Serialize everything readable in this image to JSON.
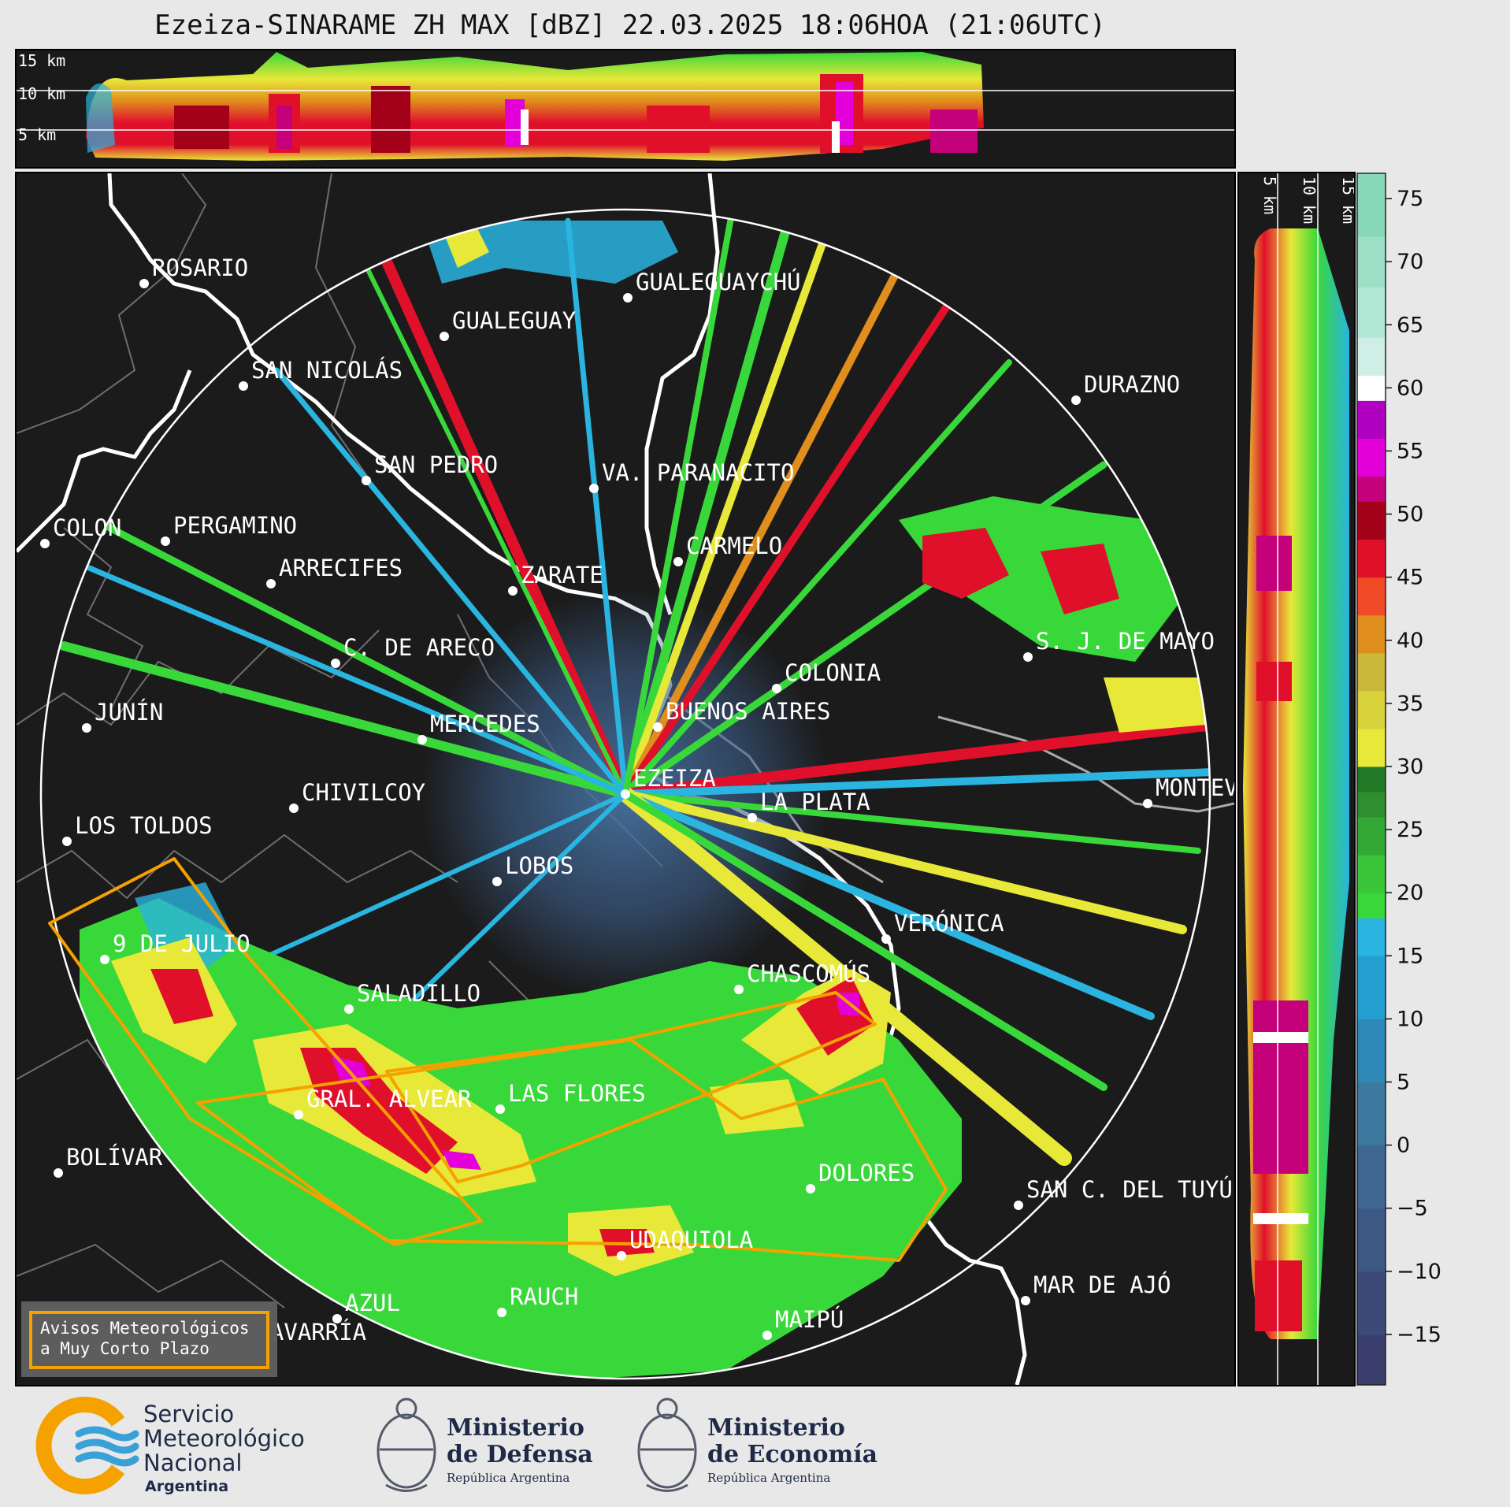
{
  "title": "Ezeiza-SINARAME ZH MAX [dBZ] 22.03.2025 18:06HOA (21:06UTC)",
  "top_panel": {
    "altitude_labels": [
      "15 km",
      "10 km",
      "5 km"
    ]
  },
  "side_panel": {
    "altitude_labels": [
      "5 km",
      "10 km",
      "15 km"
    ]
  },
  "colorbar": {
    "ticks": [
      "75",
      "70",
      "65",
      "60",
      "55",
      "50",
      "45",
      "40",
      "35",
      "30",
      "25",
      "20",
      "15",
      "10",
      "5",
      "0",
      "−5",
      "−10",
      "−15"
    ],
    "range": [
      -19,
      77
    ],
    "bands": [
      {
        "from": -19,
        "to": -15,
        "color": "#3a3f6d"
      },
      {
        "from": -15,
        "to": -10,
        "color": "#3d4a78"
      },
      {
        "from": -10,
        "to": -5,
        "color": "#3e5886"
      },
      {
        "from": -5,
        "to": 0,
        "color": "#3f6791"
      },
      {
        "from": 0,
        "to": 5,
        "color": "#3d789e"
      },
      {
        "from": 5,
        "to": 10,
        "color": "#2f89b8"
      },
      {
        "from": 10,
        "to": 15,
        "color": "#249fcf"
      },
      {
        "from": 15,
        "to": 18,
        "color": "#2ab4e0"
      },
      {
        "from": 18,
        "to": 20,
        "color": "#39d83a"
      },
      {
        "from": 20,
        "to": 23,
        "color": "#3bc63a"
      },
      {
        "from": 23,
        "to": 26,
        "color": "#34a834"
      },
      {
        "from": 26,
        "to": 28,
        "color": "#2f8f2f"
      },
      {
        "from": 28,
        "to": 30,
        "color": "#237a26"
      },
      {
        "from": 30,
        "to": 33,
        "color": "#e8e838"
      },
      {
        "from": 33,
        "to": 36,
        "color": "#d8d23b"
      },
      {
        "from": 36,
        "to": 39,
        "color": "#c9b83a"
      },
      {
        "from": 39,
        "to": 42,
        "color": "#e08e1d"
      },
      {
        "from": 42,
        "to": 45,
        "color": "#f04a26"
      },
      {
        "from": 45,
        "to": 48,
        "color": "#e0102b"
      },
      {
        "from": 48,
        "to": 51,
        "color": "#a3001a"
      },
      {
        "from": 51,
        "to": 53,
        "color": "#c4007a"
      },
      {
        "from": 53,
        "to": 56,
        "color": "#e400d9"
      },
      {
        "from": 56,
        "to": 59,
        "color": "#b000c0"
      },
      {
        "from": 59,
        "to": 61,
        "color": "#ffffff"
      },
      {
        "from": 61,
        "to": 64,
        "color": "#cfeee6"
      },
      {
        "from": 64,
        "to": 68,
        "color": "#b0e8d6"
      },
      {
        "from": 68,
        "to": 72,
        "color": "#9be0c7"
      },
      {
        "from": 72,
        "to": 77,
        "color": "#86d8b8"
      }
    ]
  },
  "cities": [
    {
      "name": "ROSARIO"
    },
    {
      "name": "GUALEGUAYCHÚ"
    },
    {
      "name": "GUALEGUAY"
    },
    {
      "name": "SAN NICOLÁS"
    },
    {
      "name": "DURAZNO"
    },
    {
      "name": "SAN PEDRO"
    },
    {
      "name": "VA. PARANACITO"
    },
    {
      "name": "COLON"
    },
    {
      "name": "PERGAMINO"
    },
    {
      "name": "CARMELO"
    },
    {
      "name": "ARRECIFES"
    },
    {
      "name": "ZARATE"
    },
    {
      "name": "S. J. DE MAYO"
    },
    {
      "name": "C. DE ARECO"
    },
    {
      "name": "COLONIA"
    },
    {
      "name": "JUNÍN"
    },
    {
      "name": "BUENOS AIRES"
    },
    {
      "name": "MERCEDES"
    },
    {
      "name": "EZEIZA"
    },
    {
      "name": "MONTEV"
    },
    {
      "name": "CHIVILCOY"
    },
    {
      "name": "LA PLATA"
    },
    {
      "name": "LOS TOLDOS"
    },
    {
      "name": "LOBOS"
    },
    {
      "name": "VERÓNICA"
    },
    {
      "name": "9 DE JULIO"
    },
    {
      "name": "CHASCOMÚS"
    },
    {
      "name": "SALADILLO"
    },
    {
      "name": "GRAL. ALVEAR"
    },
    {
      "name": "LAS FLORES"
    },
    {
      "name": "BOLÍVAR"
    },
    {
      "name": "DOLORES"
    },
    {
      "name": "SAN C. DEL TUYÚ"
    },
    {
      "name": "UDAQUIOLA"
    },
    {
      "name": "MAR DE AJÓ"
    },
    {
      "name": "AZUL"
    },
    {
      "name": "RAUCH"
    },
    {
      "name": "OLAVARRÍA"
    },
    {
      "name": "MAIPÚ"
    }
  ],
  "legend": {
    "line1": "Avisos Meteorológicos",
    "line2": "a Muy Corto Plazo"
  },
  "footer": {
    "smn": {
      "line1": "Servicio",
      "line2": "Meteorológico",
      "line3": "Nacional",
      "line4": "Argentina"
    },
    "defensa": {
      "line1": "Ministerio",
      "line2": "de Defensa",
      "line3": "República Argentina"
    },
    "economia": {
      "line1": "Ministerio",
      "line2": "de Economía",
      "line3": "República Argentina"
    }
  },
  "colors": {
    "warning_polygon": "#f5a100",
    "background": "#1b1b1b",
    "coast": "#ffffff"
  }
}
